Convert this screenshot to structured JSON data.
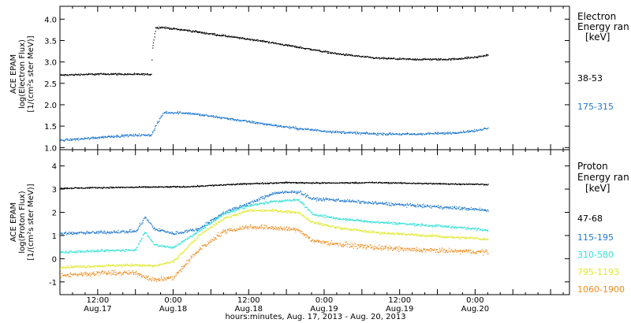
{
  "colors": {
    "black": "#000000",
    "blue": "#1f78d1",
    "cyan": "#33e0d6",
    "yellow": "#dfe82a",
    "orange": "#f08a1c"
  },
  "xaxis": {
    "label": "hours:minutes, Aug. 17, 2013 - Aug. 20, 2013",
    "range_hours": [
      0,
      81
    ],
    "ticks": [
      {
        "hour": 6,
        "time": "12:00",
        "date": "Aug.17"
      },
      {
        "hour": 18,
        "time": "0:00",
        "date": "Aug.18"
      },
      {
        "hour": 30,
        "time": "12:00",
        "date": "Aug.18"
      },
      {
        "hour": 42,
        "time": "0:00",
        "date": "Aug.19"
      },
      {
        "hour": 54,
        "time": "12:00",
        "date": "Aug.19"
      },
      {
        "hour": 66,
        "time": "0:00",
        "date": "Aug.20"
      }
    ]
  },
  "chart_data": [
    {
      "type": "scatter",
      "panel": "electron",
      "ylabel_lines": [
        "ACE EPAM",
        "log(Electron Flux)",
        "[1/(cm²s ster MeV)]"
      ],
      "legend_title_lines": [
        "Electron",
        "Energy ran",
        "[keV]"
      ],
      "ylim": [
        0.95,
        4.3
      ],
      "yticks": [
        1.0,
        1.5,
        2.0,
        2.5,
        3.0,
        3.5,
        4.0
      ],
      "ytick_labels": [
        "1.0",
        "1.5",
        "2.0",
        "2.5",
        "3.0",
        "3.5",
        "4.0"
      ],
      "series": [
        {
          "name": "38-53",
          "color": "black",
          "label_top": 95,
          "noise": 0.03,
          "points": [
            [
              0,
              2.7
            ],
            [
              4,
              2.72
            ],
            [
              8,
              2.73
            ],
            [
              12,
              2.72
            ],
            [
              14.5,
              2.72
            ],
            [
              14.6,
              3.3
            ],
            [
              15.2,
              3.8
            ],
            [
              16,
              3.82
            ],
            [
              20,
              3.75
            ],
            [
              26,
              3.62
            ],
            [
              32,
              3.5
            ],
            [
              38,
              3.35
            ],
            [
              44,
              3.2
            ],
            [
              50,
              3.1
            ],
            [
              56,
              3.07
            ],
            [
              62,
              3.07
            ],
            [
              66,
              3.12
            ],
            [
              68,
              3.17
            ]
          ]
        },
        {
          "name": "175-315",
          "color": "blue",
          "label_top": 131,
          "noise": 0.04,
          "points": [
            [
              0,
              1.18
            ],
            [
              4,
              1.22
            ],
            [
              8,
              1.27
            ],
            [
              12,
              1.3
            ],
            [
              14.5,
              1.3
            ],
            [
              15.5,
              1.6
            ],
            [
              16.5,
              1.83
            ],
            [
              20,
              1.82
            ],
            [
              26,
              1.7
            ],
            [
              32,
              1.57
            ],
            [
              38,
              1.45
            ],
            [
              44,
              1.37
            ],
            [
              50,
              1.33
            ],
            [
              56,
              1.32
            ],
            [
              62,
              1.35
            ],
            [
              66,
              1.4
            ],
            [
              68,
              1.47
            ]
          ]
        }
      ]
    },
    {
      "type": "scatter",
      "panel": "proton",
      "ylabel_lines": [
        "ACE EPAM",
        "log(Proton Flux)",
        "[1/(cm²s ster MeV)]"
      ],
      "legend_title_lines": [
        "Proton",
        "Energy ran",
        "[keV]"
      ],
      "ylim": [
        -1.55,
        4.7
      ],
      "yticks": [
        -1,
        0,
        1,
        2,
        3,
        4
      ],
      "ytick_labels": [
        "-1",
        "0",
        "1",
        "2",
        "3",
        "4"
      ],
      "series": [
        {
          "name": "47-68",
          "color": "black",
          "label_top": 273,
          "noise": 0.04,
          "points": [
            [
              0,
              3.05
            ],
            [
              6,
              3.08
            ],
            [
              12,
              3.1
            ],
            [
              20,
              3.12
            ],
            [
              26,
              3.2
            ],
            [
              30,
              3.25
            ],
            [
              36,
              3.3
            ],
            [
              42,
              3.28
            ],
            [
              50,
              3.3
            ],
            [
              60,
              3.25
            ],
            [
              68,
              3.22
            ]
          ]
        },
        {
          "name": "115-195",
          "color": "blue",
          "label_top": 297,
          "noise": 0.1,
          "points": [
            [
              0,
              1.1
            ],
            [
              6,
              1.15
            ],
            [
              12,
              1.2
            ],
            [
              13.5,
              1.8
            ],
            [
              15,
              1.3
            ],
            [
              18,
              1.1
            ],
            [
              22,
              1.3
            ],
            [
              26,
              2.0
            ],
            [
              30,
              2.4
            ],
            [
              34,
              2.85
            ],
            [
              38,
              2.9
            ],
            [
              40,
              2.6
            ],
            [
              44,
              2.55
            ],
            [
              48,
              2.45
            ],
            [
              54,
              2.35
            ],
            [
              60,
              2.25
            ],
            [
              66,
              2.15
            ],
            [
              68,
              2.1
            ]
          ]
        },
        {
          "name": "310-580",
          "color": "cyan",
          "label_top": 319,
          "noise": 0.08,
          "points": [
            [
              0,
              0.3
            ],
            [
              6,
              0.35
            ],
            [
              12,
              0.4
            ],
            [
              13.5,
              1.2
            ],
            [
              15,
              0.6
            ],
            [
              18,
              0.5
            ],
            [
              22,
              1.2
            ],
            [
              26,
              1.95
            ],
            [
              30,
              2.3
            ],
            [
              34,
              2.5
            ],
            [
              38,
              2.55
            ],
            [
              40,
              1.95
            ],
            [
              44,
              1.75
            ],
            [
              50,
              1.6
            ],
            [
              56,
              1.5
            ],
            [
              62,
              1.4
            ],
            [
              66,
              1.3
            ],
            [
              68,
              1.25
            ]
          ]
        },
        {
          "name": "795-1193",
          "color": "yellow",
          "label_top": 341,
          "noise": 0.08,
          "points": [
            [
              0,
              -0.35
            ],
            [
              6,
              -0.3
            ],
            [
              12,
              -0.25
            ],
            [
              15,
              -0.3
            ],
            [
              18,
              -0.1
            ],
            [
              22,
              1.0
            ],
            [
              26,
              1.75
            ],
            [
              30,
              2.1
            ],
            [
              34,
              2.1
            ],
            [
              38,
              2.0
            ],
            [
              40,
              1.6
            ],
            [
              44,
              1.35
            ],
            [
              50,
              1.15
            ],
            [
              56,
              1.05
            ],
            [
              62,
              0.95
            ],
            [
              66,
              0.9
            ],
            [
              68,
              0.85
            ]
          ]
        },
        {
          "name": "1060-1900",
          "color": "orange",
          "label_top": 363,
          "noise": 0.15,
          "points": [
            [
              0,
              -0.7
            ],
            [
              6,
              -0.6
            ],
            [
              12,
              -0.6
            ],
            [
              15,
              -0.9
            ],
            [
              18,
              -0.8
            ],
            [
              22,
              0.4
            ],
            [
              26,
              1.2
            ],
            [
              30,
              1.4
            ],
            [
              34,
              1.35
            ],
            [
              38,
              1.25
            ],
            [
              40,
              0.8
            ],
            [
              44,
              0.65
            ],
            [
              50,
              0.5
            ],
            [
              56,
              0.4
            ],
            [
              62,
              0.35
            ],
            [
              66,
              0.32
            ],
            [
              68,
              0.3
            ]
          ]
        }
      ]
    }
  ]
}
